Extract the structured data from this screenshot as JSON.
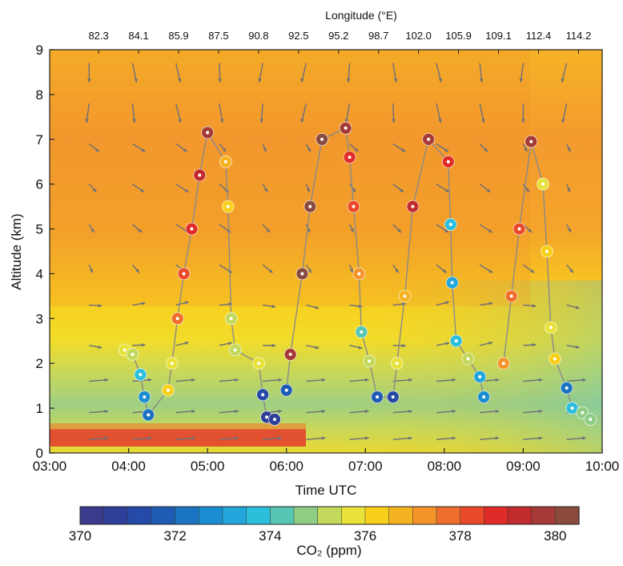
{
  "chart_data": {
    "type": "scatter",
    "title": "",
    "xlabel": "Time UTC",
    "ylabel": "Altitude (km)",
    "top_axis_label": "Longitude (°E)",
    "colorbar_label": "CO₂ (ppm)",
    "xlim": [
      "03:00",
      "10:00"
    ],
    "ylim": [
      0,
      9
    ],
    "x_ticks": [
      "03:00",
      "04:00",
      "05:00",
      "06:00",
      "07:00",
      "08:00",
      "09:00",
      "10:00"
    ],
    "y_ticks": [
      "0",
      "1",
      "2",
      "3",
      "4",
      "5",
      "6",
      "7",
      "8",
      "9"
    ],
    "top_ticks": [
      "82.3",
      "84.1",
      "85.9",
      "87.5",
      "90.8",
      "92.5",
      "95.2",
      "98.7",
      "102.0",
      "105.9",
      "109.1",
      "112.4",
      "114.2"
    ],
    "colorbar": {
      "min": 370,
      "max": 380.5,
      "ticks": [
        "370",
        "372",
        "374",
        "376",
        "378",
        "380"
      ],
      "colors": [
        "#3b3a8c",
        "#2e3f9a",
        "#264aa8",
        "#1f5cb4",
        "#1a74c2",
        "#1a8ed0",
        "#22a6dc",
        "#2cbfdc",
        "#57c6b4",
        "#8fcd85",
        "#c3d95c",
        "#e9e23a",
        "#f8d01c",
        "#f6b321",
        "#f4942a",
        "#ef6e2b",
        "#eb4a2a",
        "#e02c28",
        "#c22b2d",
        "#a63a36",
        "#8a4b3e"
      ]
    },
    "series": [
      {
        "values": [
          [
            3.95,
            2.3,
            375.5
          ],
          [
            4.05,
            2.2,
            375.2
          ],
          [
            4.15,
            1.75,
            373.6
          ],
          [
            4.2,
            1.25,
            372.8
          ],
          [
            4.25,
            0.85,
            372.0
          ],
          [
            4.5,
            1.4,
            376.2
          ],
          [
            4.55,
            2.0,
            375.7
          ],
          [
            4.62,
            3.0,
            377.5
          ],
          [
            4.7,
            4.0,
            378.2
          ],
          [
            4.8,
            5.0,
            378.8
          ],
          [
            4.9,
            6.2,
            379.3
          ],
          [
            5.0,
            7.15,
            379.5
          ],
          [
            5.23,
            6.5,
            376.6
          ],
          [
            5.26,
            5.5,
            376.2
          ],
          [
            5.3,
            3.0,
            375.3
          ],
          [
            5.35,
            2.3,
            375.4
          ],
          [
            5.65,
            2.0,
            375.5
          ],
          [
            5.7,
            1.3,
            371.4
          ],
          [
            5.75,
            0.8,
            370.6
          ],
          [
            5.85,
            0.75,
            370.5
          ]
        ]
      },
      {
        "values": [
          [
            6.0,
            1.4,
            371.5
          ],
          [
            6.05,
            2.2,
            379.7
          ],
          [
            6.2,
            4.0,
            380.1
          ],
          [
            6.3,
            5.5,
            380.3
          ],
          [
            6.45,
            7.0,
            380.4
          ],
          [
            6.75,
            7.25,
            379.6
          ],
          [
            6.8,
            6.6,
            378.6
          ],
          [
            6.85,
            5.5,
            378.1
          ],
          [
            6.92,
            4.0,
            377.0
          ],
          [
            6.95,
            2.7,
            374.0
          ],
          [
            7.05,
            2.05,
            375.4
          ],
          [
            7.15,
            1.25,
            371.5
          ],
          [
            7.35,
            1.25,
            371.3
          ],
          [
            7.4,
            2.0,
            375.6
          ],
          [
            7.5,
            3.5,
            376.5
          ],
          [
            7.6,
            5.5,
            379.0
          ],
          [
            7.8,
            7.0,
            379.7
          ],
          [
            8.05,
            6.5,
            378.6
          ],
          [
            8.08,
            5.1,
            373.6
          ],
          [
            8.1,
            3.8,
            373.3
          ],
          [
            8.15,
            2.5,
            373.9
          ],
          [
            8.3,
            2.1,
            375.4
          ],
          [
            8.45,
            1.7,
            373.1
          ],
          [
            8.5,
            1.25,
            372.5
          ]
        ]
      },
      {
        "values": [
          [
            8.75,
            2.0,
            377.0
          ],
          [
            8.85,
            3.5,
            377.6
          ],
          [
            8.95,
            5.0,
            378.4
          ],
          [
            9.1,
            6.95,
            379.5
          ],
          [
            9.25,
            6.0,
            375.8
          ],
          [
            9.3,
            4.5,
            376.4
          ],
          [
            9.35,
            2.8,
            375.8
          ],
          [
            9.4,
            2.1,
            376.4
          ],
          [
            9.55,
            1.45,
            372.0
          ],
          [
            9.62,
            1.0,
            373.5
          ],
          [
            9.75,
            0.9,
            374.6
          ],
          [
            9.85,
            0.75,
            374.5
          ]
        ]
      }
    ],
    "wind_vectors": true
  }
}
